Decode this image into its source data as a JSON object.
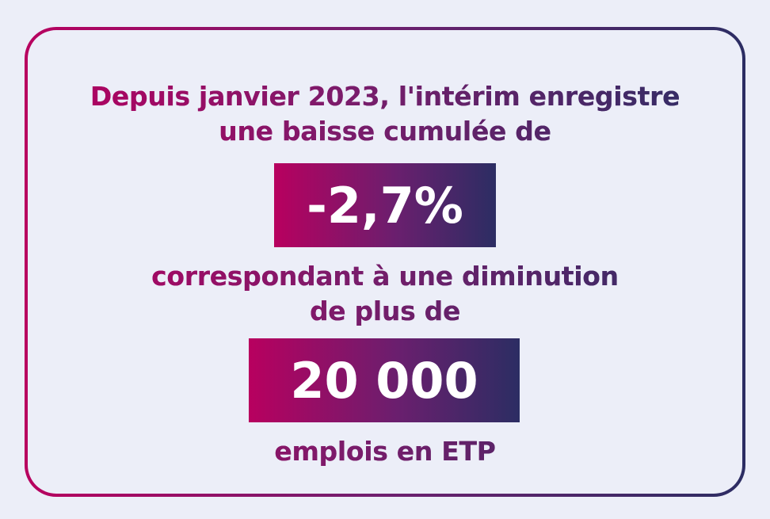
{
  "intro": {
    "line1": "Depuis janvier 2023, l'intérim enregistre",
    "line2": "une baisse cumulée de"
  },
  "stat1": {
    "value": "-2,7%"
  },
  "middle": {
    "line1": "correspondant à une diminution",
    "line2": "de plus de"
  },
  "stat2": {
    "value": "20 000"
  },
  "outro": {
    "line1": "emplois en ETP"
  },
  "colors": {
    "background": "#eceef8",
    "gradient_start": "#b8005f",
    "gradient_mid": "#6e1f6f",
    "gradient_end": "#2c2d63",
    "stat_text": "#ffffff"
  }
}
